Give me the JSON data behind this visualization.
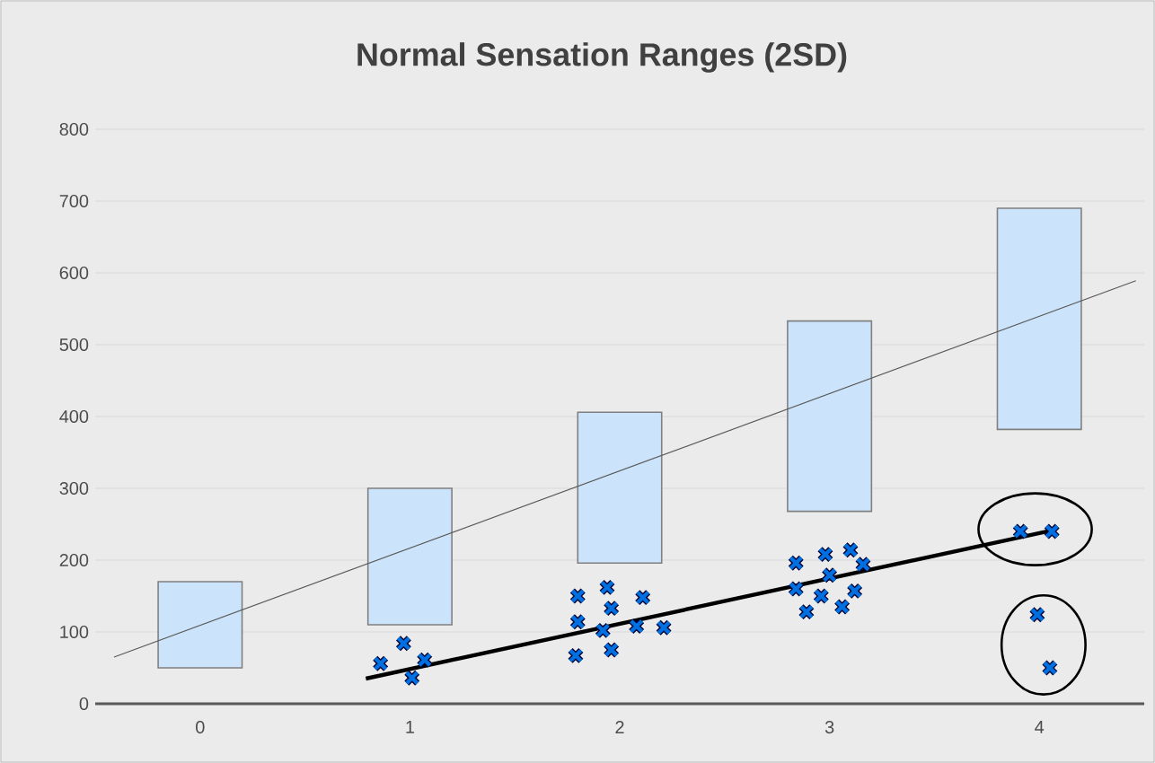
{
  "chart_data": {
    "type": "scatter",
    "title": "Normal Sensation Ranges (2SD)",
    "xlim": [
      -0.5,
      4.5
    ],
    "xticks": [
      0,
      1,
      2,
      3,
      4
    ],
    "ylim": [
      0,
      800
    ],
    "yticks": [
      0,
      100,
      200,
      300,
      400,
      500,
      600,
      700,
      800
    ],
    "grid": "y",
    "series": [
      {
        "type": "bar",
        "color": "#cce4fb",
        "x": [
          0,
          1,
          2,
          3,
          4
        ],
        "base": [
          50,
          110,
          196,
          268,
          382
        ],
        "values": [
          120,
          190,
          210,
          265,
          308
        ]
      },
      {
        "type": "line",
        "color": "#595959",
        "x": [
          -0.41,
          4.46
        ],
        "values": [
          65,
          589
        ]
      },
      {
        "type": "line",
        "color": "#000000",
        "x": [
          0.79,
          4.07
        ],
        "values": [
          35,
          242
        ]
      },
      {
        "color": "#0070e0",
        "marker": "cross",
        "x": [
          0.86,
          0.97,
          1.01,
          1.07,
          1.8,
          1.8,
          1.79,
          1.94,
          1.96,
          1.92,
          1.96,
          2.11,
          2.08,
          2.21,
          2.84,
          2.84,
          2.89,
          2.98,
          3.0,
          2.96,
          3.1,
          3.16,
          3.12,
          3.06,
          3.91,
          4.06,
          3.99,
          4.05
        ],
        "values": [
          56,
          84,
          36,
          61,
          150,
          114,
          67,
          162,
          133,
          102,
          75,
          148,
          108,
          106,
          196,
          160,
          128,
          208,
          179,
          150,
          214,
          194,
          157,
          135,
          240,
          240,
          124,
          50
        ]
      }
    ]
  }
}
